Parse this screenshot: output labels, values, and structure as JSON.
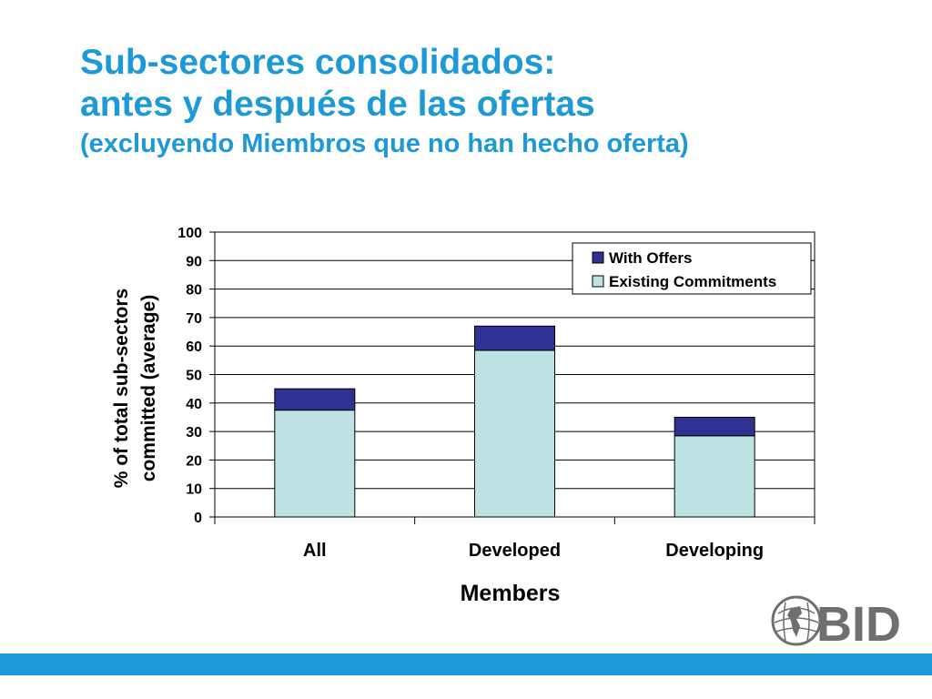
{
  "slide": {
    "title_line1": "Sub-sectores consolidados:",
    "title_line2": "antes y después de las ofertas",
    "subtitle": "(excluyendo Miembros que no han hecho oferta)",
    "accent_color": "#1d9ad6"
  },
  "logo": {
    "text": "BID",
    "icon": "globe-icon"
  },
  "chart_data": {
    "type": "bar",
    "stacked": true,
    "categories": [
      "All",
      "Developed",
      "Developing"
    ],
    "series": [
      {
        "name": "Existing Commitments",
        "values": [
          37.5,
          58.5,
          28.5
        ],
        "color": "#bde3e3"
      },
      {
        "name": "With Offers",
        "values": [
          7.5,
          8.5,
          6.5
        ],
        "color": "#2e3192"
      }
    ],
    "legend_order": [
      "With Offers",
      "Existing Commitments"
    ],
    "xlabel": "Members",
    "ylabel_line1": "% of total sub-sectors",
    "ylabel_line2": "committed (average)",
    "ylim": [
      0,
      100
    ],
    "yticks": [
      0,
      10,
      20,
      30,
      40,
      50,
      60,
      70,
      80,
      90,
      100
    ],
    "grid": true,
    "legend_position": "top-right"
  }
}
